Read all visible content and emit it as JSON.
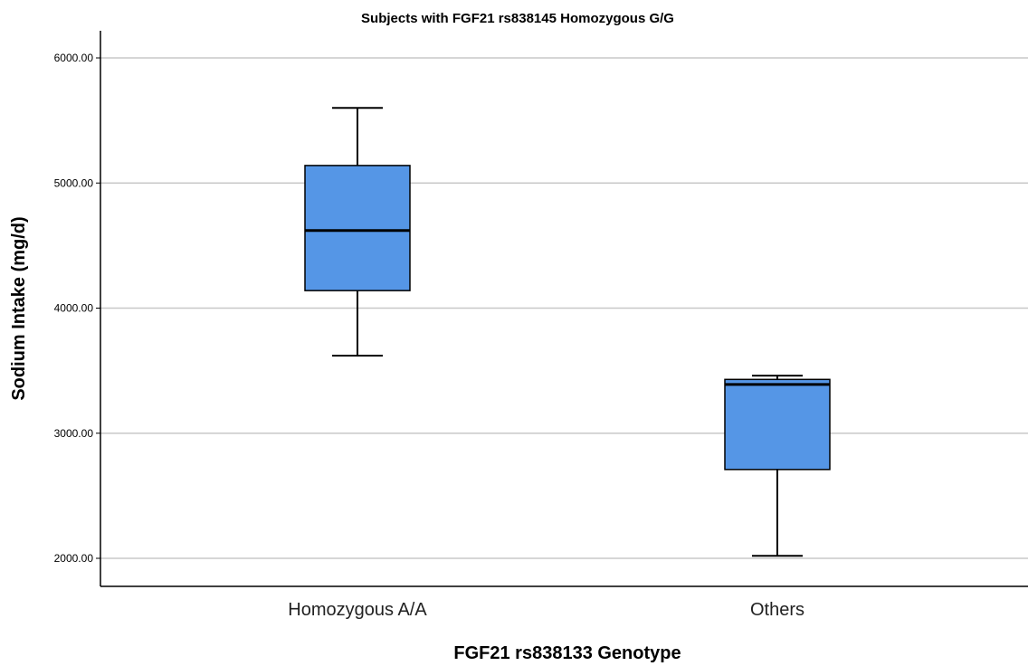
{
  "chart_data": {
    "type": "box",
    "title": "Subjects with FGF21 rs838145 Homozygous G/G",
    "xlabel": "FGF21 rs838133 Genotype",
    "ylabel": "Sodium Intake (mg/d)",
    "ylim": [
      1800,
      6250
    ],
    "yticks": [
      "2000.00",
      "3000.00",
      "4000.00",
      "5000.00",
      "6000.00"
    ],
    "ytick_values": [
      2000,
      3000,
      4000,
      5000,
      6000
    ],
    "grid": true,
    "categories": [
      "Homozygous A/A",
      "Others"
    ],
    "boxes": [
      {
        "category": "Homozygous A/A",
        "min": 3620,
        "q1": 4140,
        "median": 4620,
        "q3": 5140,
        "max": 5600
      },
      {
        "category": "Others",
        "min": 2020,
        "q1": 2710,
        "median": 3390,
        "q3": 3430,
        "max": 3460
      }
    ],
    "colors": {
      "box_fill": "#5596e6",
      "box_stroke": "#000000",
      "grid": "#c8c8c8",
      "axis": "#000000"
    }
  }
}
